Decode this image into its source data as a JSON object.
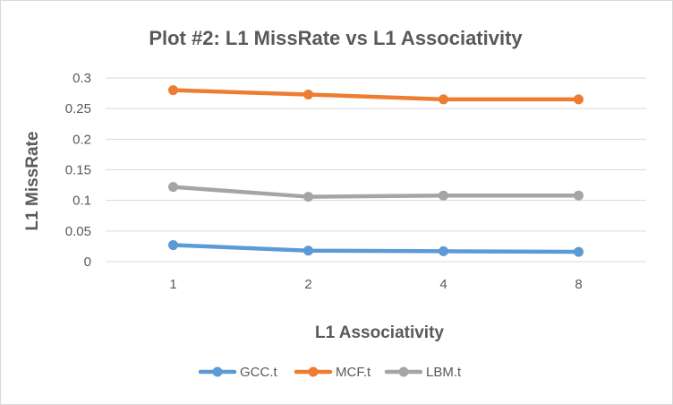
{
  "chart_data": {
    "type": "line",
    "title": "Plot #2: L1 MissRate vs L1 Associativity",
    "xlabel": "L1 Associativity",
    "ylabel": "L1 MissRate",
    "categories": [
      "1",
      "2",
      "4",
      "8"
    ],
    "ylim": [
      0,
      0.3
    ],
    "yticks": [
      "0",
      "0.05",
      "0.1",
      "0.15",
      "0.2",
      "0.25",
      "0.3"
    ],
    "grid": true,
    "legend_position": "bottom",
    "series": [
      {
        "name": "GCC.t",
        "color": "#5b9bd5",
        "values": [
          0.027,
          0.018,
          0.017,
          0.016
        ]
      },
      {
        "name": "MCF.t",
        "color": "#ed7d31",
        "values": [
          0.28,
          0.273,
          0.265,
          0.265
        ]
      },
      {
        "name": "LBM.t",
        "color": "#a5a5a5",
        "values": [
          0.122,
          0.106,
          0.108,
          0.108
        ]
      }
    ]
  }
}
